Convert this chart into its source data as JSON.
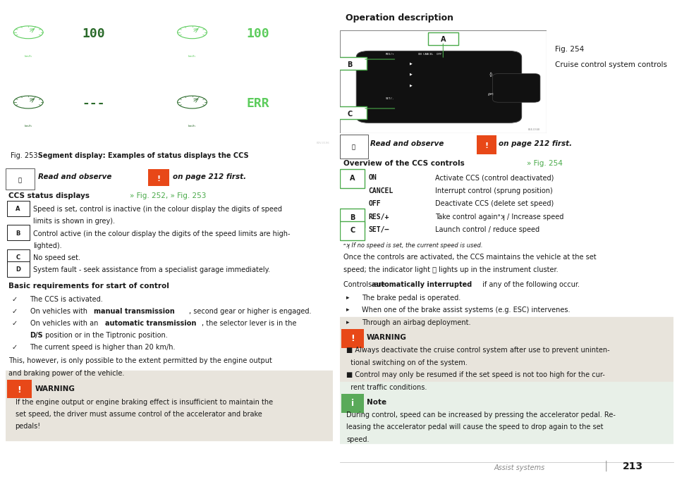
{
  "bg_color": "#ffffff",
  "dark_bg": "#000000",
  "green_bright": "#5ccc5c",
  "green_dim": "#2a6a2a",
  "orange_red": "#e84818",
  "fig_caption_bg": "#e0dbd2",
  "warning_bg": "#e8e4dc",
  "op_desc_header_bg": "#c0bcb4",
  "note_bg": "#e8f0e8",
  "text_color": "#1a1a1a",
  "gray_text": "#888888",
  "green_link": "#4aaa4a",
  "fig253_caption": "Fig. 253   Segment display: Examples of status displays the CCS",
  "ccs_status_title": "CCS status displays",
  "fig_refs": "» Fig. 252, » Fig. 253",
  "items_A_to_D": [
    [
      "Speed is set, control is inactive (in the colour display the digits of speed",
      "limits is shown in grey)."
    ],
    [
      "Control active (in the colour display the digits of the speed limits are high-",
      "lighted)."
    ],
    [
      "No speed set."
    ],
    [
      "System fault - seek assistance from a specialist garage immediately."
    ]
  ],
  "basic_req_title": "Basic requirements for start of control",
  "basic_req_items": [
    [
      "The CCS is activated."
    ],
    [
      "On vehicles with ",
      "manual transmission",
      ", second gear or higher is engaged."
    ],
    [
      "On vehicles with an ",
      "automatic transmission",
      ", the selector lever is in the",
      "",
      "D/S",
      " position or in the Tiptronic position."
    ],
    [
      "The current speed is higher than 20 km/h."
    ]
  ],
  "this_however": [
    "This, however, is only possible to the extent permitted by the engine output",
    "and braking power of the vehicle."
  ],
  "warning_title": "WARNING",
  "warning_text": [
    "If the engine output or engine braking effect is insufficient to maintain the",
    "set speed, the driver must assume control of the accelerator and brake",
    "pedals!"
  ],
  "op_desc_header": "Operation description",
  "fig254_caption_line1": "Fig. 254",
  "fig254_caption_line2": "Cruise control system controls",
  "overview_title": "Overview of the CCS controls",
  "fig254_ref": "» Fig. 254",
  "ccs_controls": [
    [
      "A",
      "ON",
      "Activate CCS (control deactivated)"
    ],
    [
      "",
      "CANCEL",
      "Interrupt control (sprung position)"
    ],
    [
      "",
      "OFF",
      "Deactivate CCS (delete set speed)"
    ],
    [
      "B",
      "RES/+",
      "Take control againᵃʞ / Increase speed"
    ],
    [
      "C",
      "SET/–",
      "Launch control / reduce speed"
    ]
  ],
  "footnote": "ᵃʞ If no speed is set, the current speed is used.",
  "once_controls_line1": "Once the controls are activated, the CCS maintains the vehicle at the set",
  "once_controls_line2": "speed; the indicator light ⧖ lights up in the instrument cluster.",
  "controls_interrupted_pre": "Controls are ",
  "controls_interrupted_bold": "automatically interrupted",
  "controls_interrupted_post": " if any of the following occur.",
  "interrupt_items": [
    "The brake pedal is operated.",
    "When one of the brake assist systems (e.g. ESC) intervenes.",
    "Through an airbag deployment."
  ],
  "warning2_title": "WARNING",
  "warning2_items": [
    [
      "■ Always deactivate the cruise control system after use to prevent uninten-",
      "  tional switching on of the system."
    ],
    [
      "■ Control may only be resumed if the set speed is not too high for the cur-",
      "  rent traffic conditions."
    ]
  ],
  "note_title": "Note",
  "note_text": [
    "During control, speed can be increased by pressing the accelerator pedal. Re-",
    "leasing the accelerator pedal will cause the speed to drop again to the set",
    "speed."
  ],
  "assist_systems": "Assist systems",
  "page_num": "213"
}
